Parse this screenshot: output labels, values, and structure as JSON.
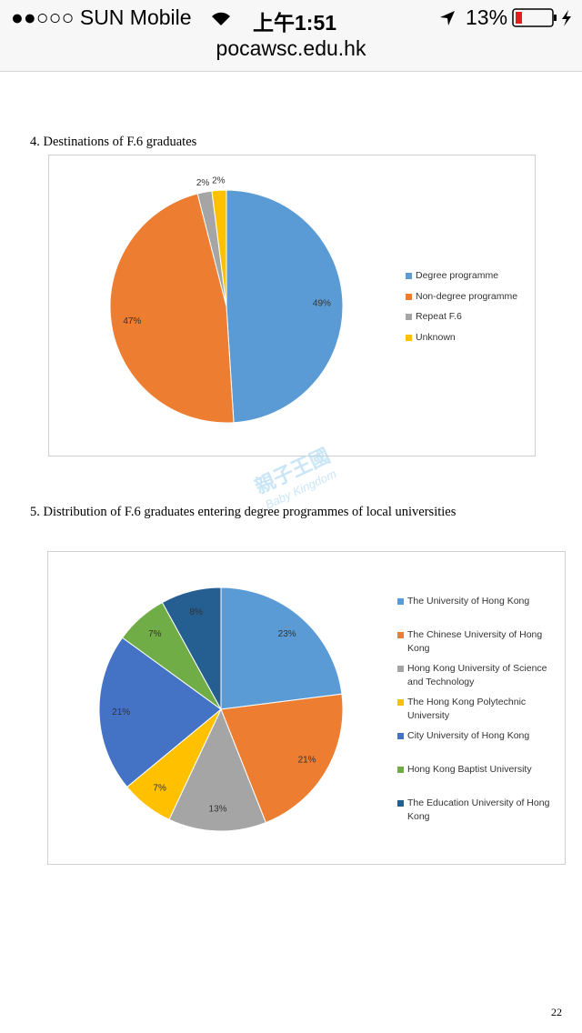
{
  "status_bar": {
    "carrier": "●●○○○ SUN Mobile",
    "time": "上午1:51",
    "battery": "13%"
  },
  "url": "pocawsc.edu.hk",
  "watermark": {
    "name": "親子王國",
    "subtitle": "Baby Kingdom"
  },
  "chart_data": [
    {
      "type": "pie",
      "title": "4.  Destinations of F.6 graduates",
      "categories": [
        "Degree programme",
        "Non-degree programme",
        "Repeat F.6",
        "Unknown"
      ],
      "values": [
        49,
        47,
        2,
        2
      ],
      "value_labels": [
        "49%",
        "47%",
        "2%",
        "2%"
      ],
      "colors": [
        "#5b9bd5",
        "#ed7d31",
        "#a5a5a5",
        "#ffc000"
      ],
      "legend": "right"
    },
    {
      "type": "pie",
      "title": "5.  Distribution of F.6 graduates entering degree programmes of local universities",
      "categories": [
        "The University of Hong Kong",
        "The Chinese University of Hong Kong",
        "Hong Kong University of Science and Technology",
        "The Hong Kong Polytechnic University",
        "City University of Hong Kong",
        "Hong Kong Baptist University",
        "The Education University of Hong Kong"
      ],
      "values": [
        23,
        21,
        13,
        7,
        21,
        7,
        8
      ],
      "value_labels": [
        "23%",
        "21%",
        "13%",
        "7%",
        "21%",
        "7%",
        "8%"
      ],
      "colors": [
        "#5b9bd5",
        "#ed7d31",
        "#a5a5a5",
        "#ffc000",
        "#4472c4",
        "#70ad47",
        "#255e91"
      ],
      "legend": "right"
    }
  ],
  "page_number": "22"
}
